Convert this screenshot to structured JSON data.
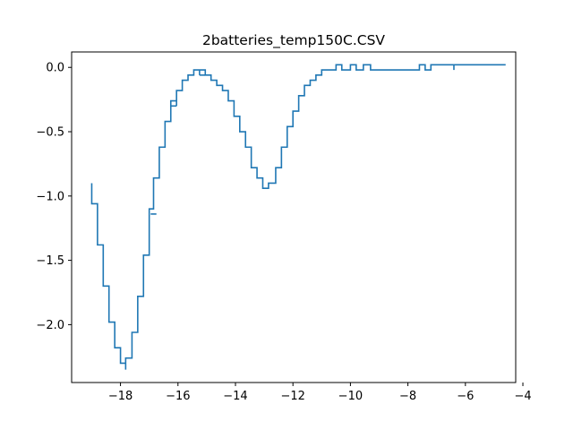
{
  "chart_data": {
    "type": "line",
    "title": "2batteries_temp150C.CSV",
    "xlabel": "",
    "ylabel": "",
    "xlim": [
      -19.7,
      -4.25
    ],
    "ylim": [
      -2.45,
      0.12
    ],
    "grid": false,
    "legend": "none",
    "step": true,
    "color": "#1f77b4",
    "xticks": [
      {
        "value": -18,
        "label": "−18"
      },
      {
        "value": -16,
        "label": "−16"
      },
      {
        "value": -14,
        "label": "−14"
      },
      {
        "value": -12,
        "label": "−12"
      },
      {
        "value": -10,
        "label": "−10"
      },
      {
        "value": -8,
        "label": "−8"
      },
      {
        "value": -6,
        "label": "−6"
      },
      {
        "value": -4,
        "label": "−4"
      }
    ],
    "yticks": [
      {
        "value": 0.0,
        "label": "0.0"
      },
      {
        "value": -0.5,
        "label": "−0.5"
      },
      {
        "value": -1.0,
        "label": "−1.0"
      },
      {
        "value": -1.5,
        "label": "−1.5"
      },
      {
        "value": -2.0,
        "label": "−2.0"
      }
    ],
    "series": [
      {
        "points": [
          [
            -19.0,
            -0.9
          ],
          [
            -19.0,
            -1.06
          ],
          [
            -18.8,
            -1.06
          ],
          [
            -18.8,
            -1.38
          ],
          [
            -18.6,
            -1.38
          ],
          [
            -18.6,
            -1.7
          ],
          [
            -18.4,
            -1.7
          ],
          [
            -18.4,
            -1.98
          ],
          [
            -18.2,
            -1.98
          ],
          [
            -18.2,
            -2.18
          ],
          [
            -18.0,
            -2.18
          ],
          [
            -18.0,
            -2.3
          ],
          [
            -17.82,
            -2.3
          ],
          [
            -17.82,
            -2.35
          ],
          [
            -17.82,
            -2.26
          ],
          [
            -17.6,
            -2.26
          ],
          [
            -17.6,
            -2.06
          ],
          [
            -17.4,
            -2.06
          ],
          [
            -17.4,
            -1.78
          ],
          [
            -17.2,
            -1.78
          ],
          [
            -17.2,
            -1.46
          ],
          [
            -17.0,
            -1.46
          ],
          [
            -17.0,
            -1.1
          ],
          [
            -16.85,
            -1.1
          ],
          [
            -16.85,
            -0.86
          ],
          [
            -16.65,
            -0.86
          ],
          [
            -16.65,
            -0.62
          ],
          [
            -16.45,
            -0.62
          ],
          [
            -16.45,
            -0.42
          ],
          [
            -16.25,
            -0.42
          ],
          [
            -16.25,
            -0.26
          ],
          [
            -16.05,
            -0.26
          ],
          [
            -16.05,
            -0.18
          ],
          [
            -15.85,
            -0.18
          ],
          [
            -15.85,
            -0.1
          ],
          [
            -15.65,
            -0.1
          ],
          [
            -15.65,
            -0.06
          ],
          [
            -15.45,
            -0.06
          ],
          [
            -15.45,
            -0.02
          ],
          [
            -15.05,
            -0.02
          ],
          [
            -15.05,
            -0.06
          ],
          [
            -14.85,
            -0.06
          ],
          [
            -14.85,
            -0.1
          ],
          [
            -14.65,
            -0.1
          ],
          [
            -14.65,
            -0.14
          ],
          [
            -14.45,
            -0.14
          ],
          [
            -14.45,
            -0.18
          ],
          [
            -14.25,
            -0.18
          ],
          [
            -14.25,
            -0.26
          ],
          [
            -14.05,
            -0.26
          ],
          [
            -14.05,
            -0.38
          ],
          [
            -13.85,
            -0.38
          ],
          [
            -13.85,
            -0.5
          ],
          [
            -13.65,
            -0.5
          ],
          [
            -13.65,
            -0.62
          ],
          [
            -13.45,
            -0.62
          ],
          [
            -13.45,
            -0.78
          ],
          [
            -13.25,
            -0.78
          ],
          [
            -13.25,
            -0.86
          ],
          [
            -13.05,
            -0.86
          ],
          [
            -13.05,
            -0.94
          ],
          [
            -12.85,
            -0.94
          ],
          [
            -12.85,
            -0.9
          ],
          [
            -12.6,
            -0.9
          ],
          [
            -12.6,
            -0.78
          ],
          [
            -12.4,
            -0.78
          ],
          [
            -12.4,
            -0.62
          ],
          [
            -12.2,
            -0.62
          ],
          [
            -12.2,
            -0.46
          ],
          [
            -12.0,
            -0.46
          ],
          [
            -12.0,
            -0.34
          ],
          [
            -11.8,
            -0.34
          ],
          [
            -11.8,
            -0.22
          ],
          [
            -11.6,
            -0.22
          ],
          [
            -11.6,
            -0.14
          ],
          [
            -11.4,
            -0.14
          ],
          [
            -11.4,
            -0.1
          ],
          [
            -11.2,
            -0.1
          ],
          [
            -11.2,
            -0.06
          ],
          [
            -11.0,
            -0.06
          ],
          [
            -11.0,
            -0.02
          ],
          [
            -10.5,
            -0.02
          ],
          [
            -10.5,
            0.02
          ],
          [
            -10.3,
            0.02
          ],
          [
            -10.3,
            -0.02
          ],
          [
            -10.0,
            -0.02
          ],
          [
            -10.0,
            0.02
          ],
          [
            -9.8,
            0.02
          ],
          [
            -9.8,
            -0.02
          ],
          [
            -9.55,
            -0.02
          ],
          [
            -9.55,
            0.02
          ],
          [
            -9.3,
            0.02
          ],
          [
            -9.3,
            -0.02
          ],
          [
            -7.6,
            -0.02
          ],
          [
            -7.6,
            0.02
          ],
          [
            -7.4,
            0.02
          ],
          [
            -7.4,
            -0.02
          ],
          [
            -7.2,
            -0.02
          ],
          [
            -7.2,
            0.02
          ],
          [
            -4.6,
            0.02
          ]
        ],
        "extra_segments": [
          {
            "x": [
              -16.25,
              -16.05
            ],
            "y": [
              -0.3,
              -0.3
            ]
          },
          {
            "x": [
              -16.05,
              -16.05
            ],
            "y": [
              -0.26,
              -0.3
            ]
          },
          {
            "x": [
              -15.25,
              -15.25
            ],
            "y": [
              -0.02,
              -0.06
            ]
          },
          {
            "x": [
              -15.25,
              -15.05
            ],
            "y": [
              -0.06,
              -0.06
            ]
          },
          {
            "x": [
              -16.95,
              -16.75
            ],
            "y": [
              -1.14,
              -1.14
            ]
          },
          {
            "x": [
              -6.4,
              -6.4
            ],
            "y": [
              0.02,
              -0.02
            ]
          }
        ]
      }
    ]
  }
}
